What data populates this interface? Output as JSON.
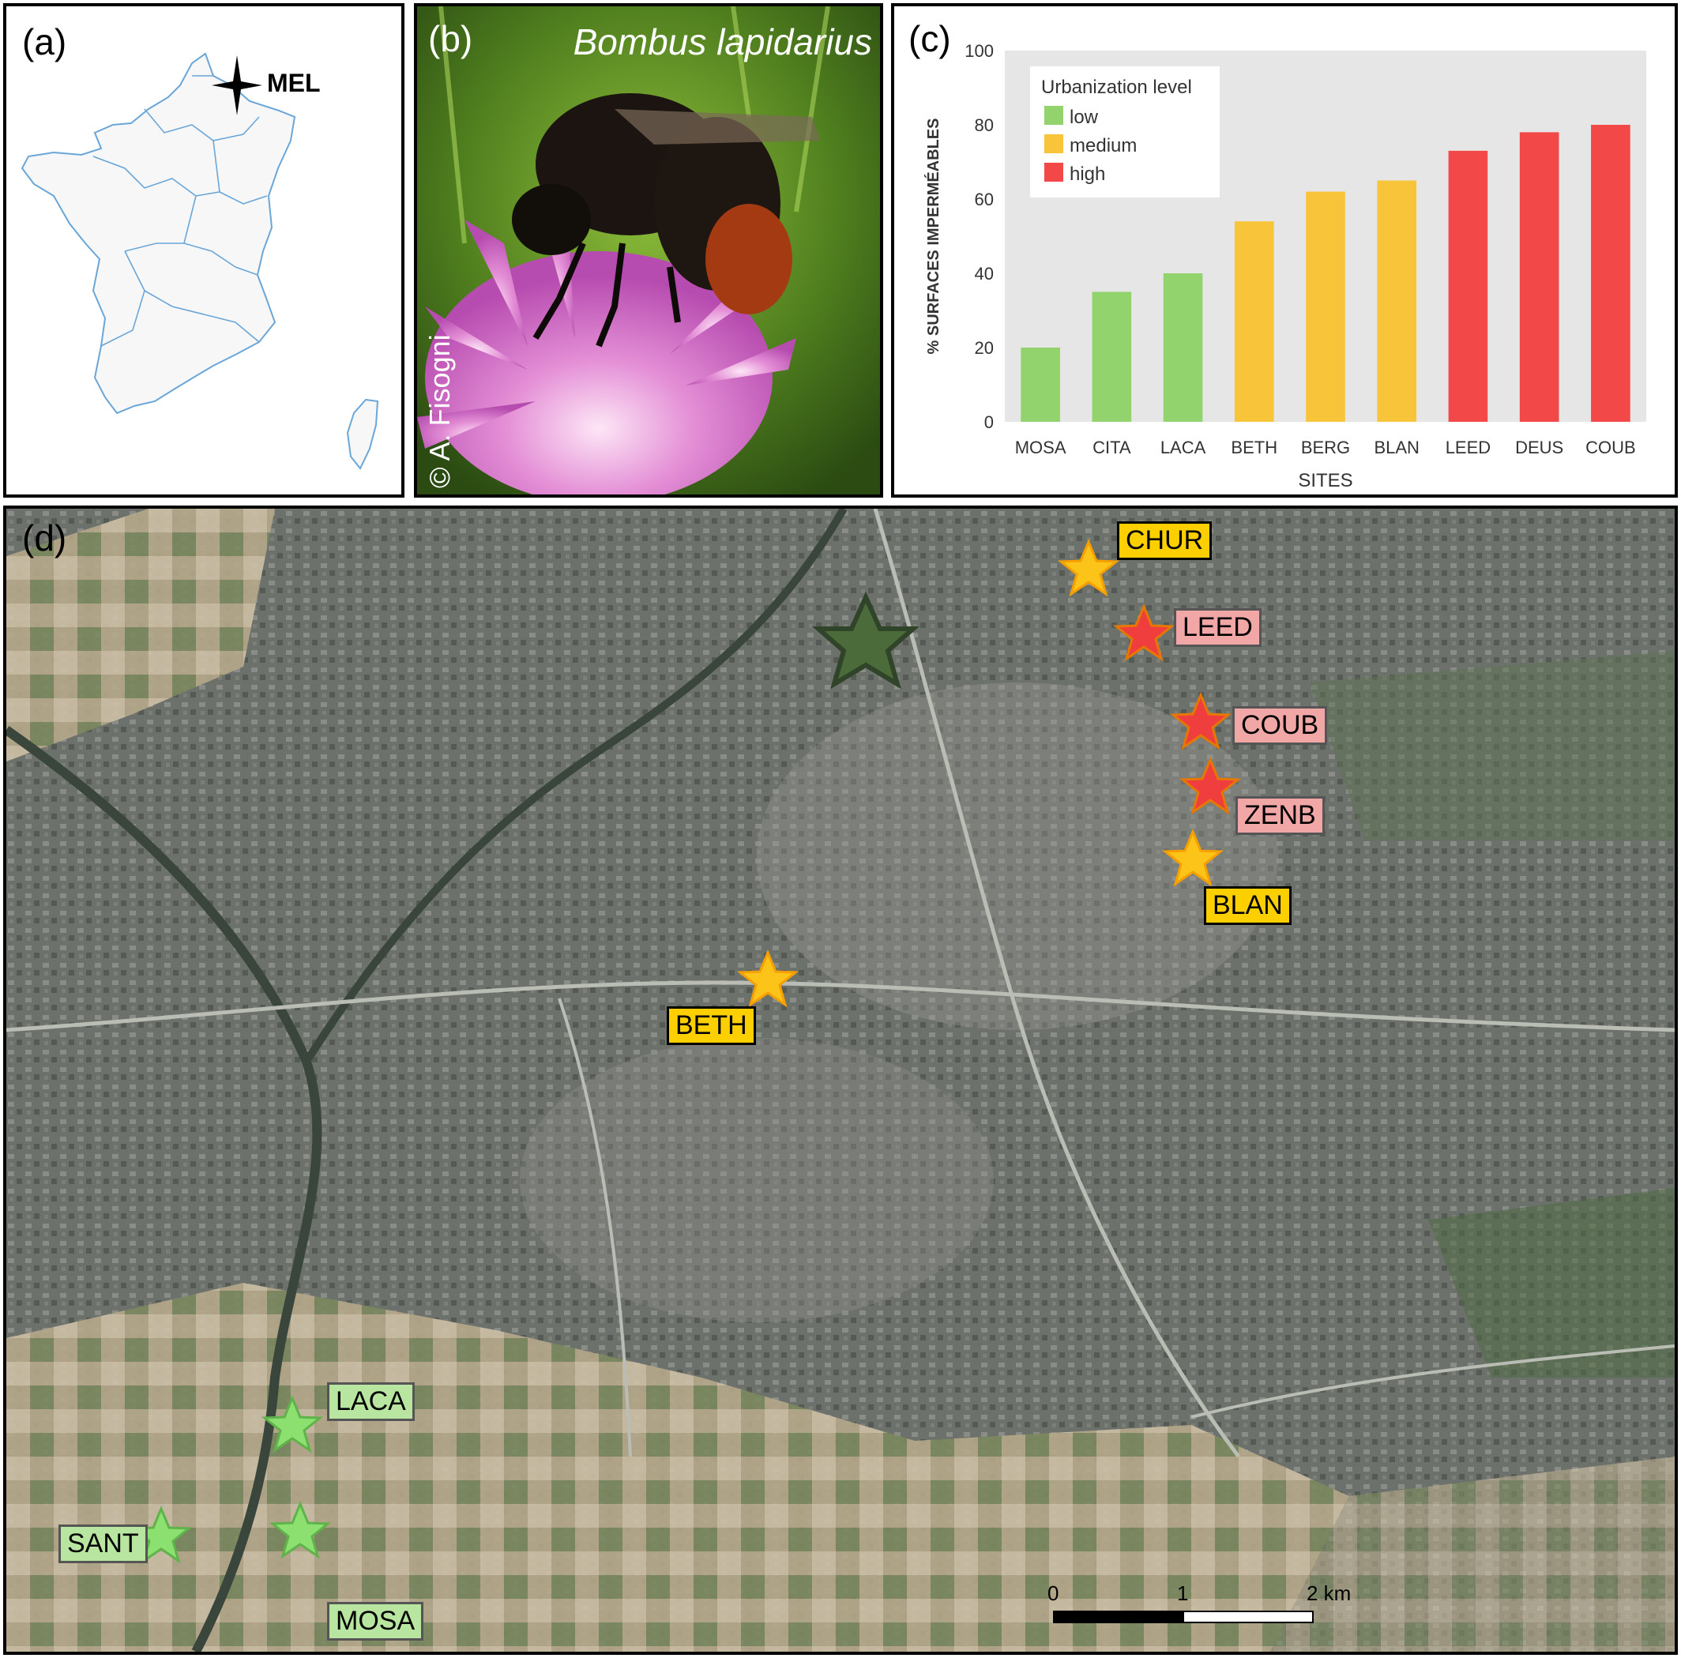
{
  "panel_a": {
    "label": "(a)",
    "marker_label": "MEL"
  },
  "panel_b": {
    "label": "(b)",
    "species": "Bombus lapidarius",
    "credit": "© A. Fisogni"
  },
  "panel_c": {
    "label": "(c)"
  },
  "chart_data": {
    "type": "bar",
    "categories": [
      "MOSA",
      "CITA",
      "LACA",
      "BETH",
      "BERG",
      "BLAN",
      "LEED",
      "DEUS",
      "COUB"
    ],
    "values": [
      20,
      35,
      40,
      54,
      62,
      65,
      73,
      78,
      80
    ],
    "levels": [
      "low",
      "low",
      "low",
      "medium",
      "medium",
      "medium",
      "high",
      "high",
      "high"
    ],
    "ylabel": "% SURFACES IMPERMÉABLES",
    "xlabel": "SITES",
    "ylim": [
      0,
      100
    ],
    "yticks": [
      0,
      20,
      40,
      60,
      80,
      100
    ],
    "grid": false,
    "legend": {
      "title": "Urbanization level",
      "placement": "top-left",
      "entries": [
        {
          "name": "low",
          "color": "#92d36e"
        },
        {
          "name": "medium",
          "color": "#f8c53a"
        },
        {
          "name": "high",
          "color": "#f24848"
        }
      ]
    }
  },
  "panel_d": {
    "label": "(d)",
    "sites": [
      {
        "name": "CHUR",
        "level": "medium"
      },
      {
        "name": "LEED",
        "level": "high"
      },
      {
        "name": "COUB",
        "level": "high"
      },
      {
        "name": "ZENB",
        "level": "high"
      },
      {
        "name": "BLAN",
        "level": "medium"
      },
      {
        "name": "BETH",
        "level": "medium"
      },
      {
        "name": "LACA",
        "level": "low"
      },
      {
        "name": "SANT",
        "level": "low"
      },
      {
        "name": "MOSA",
        "level": "low"
      }
    ],
    "scale": {
      "tick0": "0",
      "tick1": "1",
      "tick2": "2 km"
    }
  },
  "colors": {
    "low": "#92d36e",
    "medium": "#f8c53a",
    "high": "#f24848",
    "map_bg": "#6b6f68",
    "fields": "#cdbfa4"
  }
}
